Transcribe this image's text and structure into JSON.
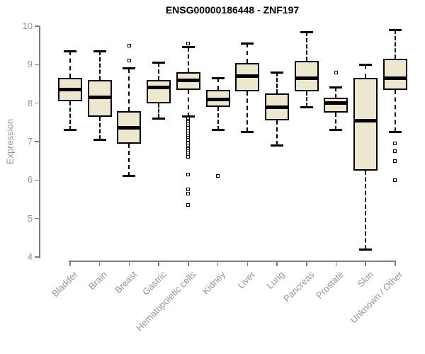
{
  "chart_data": {
    "type": "boxplot",
    "title": "ENSG00000186448 - ZNF197",
    "xlabel": "",
    "ylabel": "Expression",
    "ylim": [
      4,
      10
    ],
    "yticks": [
      4,
      5,
      6,
      7,
      8,
      9,
      10
    ],
    "grid": false,
    "legend": null,
    "colors": {
      "box_fill": "#EDE7CD",
      "box_border": "#000000",
      "median": "#000000",
      "axis": "#7f7f7f",
      "labels": "#959595",
      "title": "#000000",
      "background": "#ffffff"
    },
    "categories": [
      "Bladder",
      "Brain",
      "Breast",
      "Gastric",
      "Hematopoietic cells",
      "Kidney",
      "Liver",
      "Lung",
      "Pancreas",
      "Prostate",
      "Skin",
      "Unknown / Other"
    ],
    "series": [
      {
        "category": "Bladder",
        "whisker_low": 7.3,
        "q1": 8.05,
        "median": 8.35,
        "q3": 8.65,
        "whisker_high": 9.35,
        "outliers": []
      },
      {
        "category": "Brain",
        "whisker_low": 7.05,
        "q1": 7.65,
        "median": 8.15,
        "q3": 8.6,
        "whisker_high": 9.35,
        "outliers": []
      },
      {
        "category": "Breast",
        "whisker_low": 6.1,
        "q1": 6.95,
        "median": 7.35,
        "q3": 7.8,
        "whisker_high": 8.9,
        "outliers": [
          9.5,
          9.1
        ]
      },
      {
        "category": "Gastric",
        "whisker_low": 7.6,
        "q1": 8.0,
        "median": 8.4,
        "q3": 8.6,
        "whisker_high": 9.05,
        "outliers": []
      },
      {
        "category": "Hematopoietic cells",
        "whisker_low": 7.65,
        "q1": 8.35,
        "median": 8.6,
        "q3": 8.8,
        "whisker_high": 9.45,
        "outliers": [
          9.55,
          7.6,
          7.55,
          7.5,
          7.45,
          7.4,
          7.35,
          7.28,
          7.22,
          7.15,
          7.1,
          7.05,
          6.95,
          6.9,
          6.85,
          6.8,
          6.75,
          6.7,
          6.65,
          6.6,
          6.15,
          5.75,
          5.65,
          5.35
        ]
      },
      {
        "category": "Kidney",
        "whisker_low": 7.3,
        "q1": 7.9,
        "median": 8.1,
        "q3": 8.35,
        "whisker_high": 8.65,
        "outliers": [
          6.1
        ]
      },
      {
        "category": "Liver",
        "whisker_low": 7.25,
        "q1": 8.3,
        "median": 8.7,
        "q3": 9.05,
        "whisker_high": 9.55,
        "outliers": []
      },
      {
        "category": "Lung",
        "whisker_low": 6.9,
        "q1": 7.55,
        "median": 7.9,
        "q3": 8.25,
        "whisker_high": 8.8,
        "outliers": []
      },
      {
        "category": "Pancreas",
        "whisker_low": 7.9,
        "q1": 8.3,
        "median": 8.65,
        "q3": 9.1,
        "whisker_high": 9.85,
        "outliers": []
      },
      {
        "category": "Prostate",
        "whisker_low": 7.3,
        "q1": 7.75,
        "median": 8.0,
        "q3": 8.15,
        "whisker_high": 8.4,
        "outliers": [
          8.8
        ]
      },
      {
        "category": "Skin",
        "whisker_low": 4.2,
        "q1": 6.25,
        "median": 7.55,
        "q3": 8.65,
        "whisker_high": 9.0,
        "outliers": []
      },
      {
        "category": "Unknown / Other",
        "whisker_low": 7.25,
        "q1": 8.35,
        "median": 8.65,
        "q3": 9.15,
        "whisker_high": 9.9,
        "outliers": [
          6.95,
          6.75,
          6.5,
          6.0
        ]
      }
    ]
  }
}
